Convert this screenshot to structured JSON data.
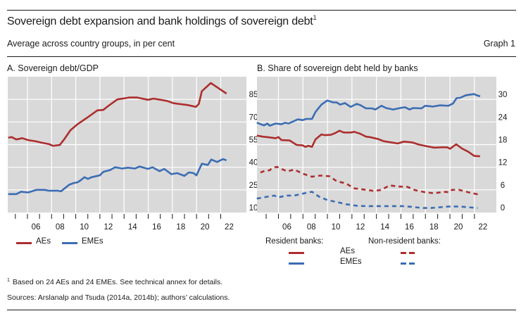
{
  "header": {
    "title": "Sovereign debt expansion and bank holdings of sovereign debt",
    "title_footnote_mark": "1",
    "subtitle": "Average across country groups, in per cent",
    "graph_number": "Graph 1"
  },
  "colors": {
    "AEs": "#AD2E2E",
    "EMEs": "#3B6DB3",
    "plot_background": "#D9D9D9",
    "gridline": "#FFFFFF"
  },
  "chart_data": [
    {
      "id": "A",
      "type": "line",
      "title": "A. Sovereign debt/GDP",
      "xlabel": "",
      "ylabel": "",
      "xlim": [
        2004.37,
        2024.13
      ],
      "ylim": [
        10,
        100
      ],
      "y_axis_side": "right",
      "yticks": [
        10,
        25,
        40,
        55,
        70,
        85
      ],
      "xticks": [
        2006,
        2008,
        2010,
        2012,
        2014,
        2016,
        2018,
        2020,
        2022
      ],
      "xtick_labels": [
        "06",
        "08",
        "10",
        "12",
        "14",
        "16",
        "18",
        "20",
        "22"
      ],
      "minor_xticks": [
        2005,
        2007,
        2009,
        2011,
        2013,
        2015,
        2017,
        2019,
        2021
      ],
      "grid": true,
      "legend": {
        "placement": "bottom-left",
        "entries": [
          "AEs",
          "EMEs"
        ]
      },
      "series": [
        {
          "name": "AEs",
          "style": "solid",
          "color_key": "AEs",
          "x": [
            2004.41,
            2004.7,
            2005.08,
            2005.57,
            2006.06,
            2006.64,
            2007.22,
            2007.81,
            2008.1,
            2008.68,
            2009.07,
            2009.56,
            2010.14,
            2010.92,
            2011.79,
            2012.28,
            2012.66,
            2013.45,
            2014.12,
            2014.41,
            2015.1,
            2015.97,
            2016.45,
            2017.53,
            2018.11,
            2019.28,
            2019.95,
            2020.19,
            2020.44,
            2021.18,
            2021.61,
            2022.48
          ],
          "values": [
            59.6,
            60.0,
            58.4,
            59.3,
            58.0,
            57.3,
            56.2,
            55.3,
            54.2,
            54.7,
            58.8,
            64.5,
            68.5,
            72.7,
            77.7,
            78.0,
            80.4,
            85.0,
            85.8,
            86.2,
            86.2,
            84.7,
            85.5,
            84.0,
            82.4,
            81.2,
            80.0,
            82.0,
            90.4,
            95.8,
            93.5,
            88.8
          ]
        },
        {
          "name": "EMEs",
          "style": "solid",
          "color_key": "EMEs",
          "x": [
            2004.41,
            2005.08,
            2005.48,
            2006.06,
            2006.74,
            2007.42,
            2007.81,
            2008.49,
            2008.78,
            2009.46,
            2009.85,
            2010.14,
            2010.43,
            2010.72,
            2011.01,
            2011.31,
            2011.99,
            2012.28,
            2012.86,
            2013.25,
            2013.83,
            2014.32,
            2014.9,
            2015.29,
            2015.97,
            2016.36,
            2016.94,
            2017.33,
            2017.91,
            2018.4,
            2018.99,
            2019.37,
            2019.76,
            2019.99,
            2020.44,
            2020.93,
            2021.22,
            2021.7,
            2022.19,
            2022.48
          ],
          "values": [
            22.2,
            22.2,
            23.8,
            23.3,
            25.0,
            25.0,
            24.4,
            24.5,
            24.1,
            28.4,
            29.6,
            30.0,
            31.5,
            33.4,
            32.3,
            33.4,
            34.6,
            36.9,
            38.2,
            40.0,
            39.2,
            39.7,
            39.2,
            40.5,
            38.9,
            40.0,
            37.4,
            38.9,
            35.4,
            36.1,
            34.3,
            36.6,
            36.1,
            34.6,
            42.3,
            41.5,
            45.1,
            43.5,
            45.4,
            44.6
          ]
        }
      ]
    },
    {
      "id": "B",
      "type": "line",
      "title": "B. Share of sovereign debt held by banks",
      "xlabel": "",
      "ylabel": "",
      "xlim": [
        2004.25,
        2023.79
      ],
      "ylim": [
        0,
        36
      ],
      "y_axis_side": "right",
      "yticks": [
        0,
        6,
        12,
        18,
        24,
        30
      ],
      "xticks": [
        2006,
        2008,
        2010,
        2012,
        2014,
        2016,
        2018,
        2020,
        2022
      ],
      "xtick_labels": [
        "06",
        "08",
        "10",
        "12",
        "14",
        "16",
        "18",
        "20",
        "22"
      ],
      "minor_xticks": [
        2005,
        2007,
        2009,
        2011,
        2013,
        2015,
        2017,
        2019,
        2021
      ],
      "grid": true,
      "legend": {
        "placement": "bottom",
        "group_labels": [
          "Resident banks:",
          "Non-resident banks:"
        ],
        "row_labels": [
          "AEs",
          "EMEs"
        ]
      },
      "series": [
        {
          "name": "Resident banks: EMEs",
          "style": "solid",
          "color_key": "EMEs",
          "x": [
            2004.24,
            2004.82,
            2005.1,
            2005.29,
            2005.77,
            2006.25,
            2006.54,
            2006.83,
            2007.59,
            2007.98,
            2008.26,
            2008.74,
            2009.03,
            2009.51,
            2009.99,
            2010.47,
            2010.75,
            2011.04,
            2011.43,
            2011.9,
            2012.38,
            2012.67,
            2013.15,
            2013.63,
            2013.91,
            2014.41,
            2014.79,
            2015.37,
            2015.94,
            2016.33,
            2016.71,
            2017.0,
            2017.67,
            2017.99,
            2018.63,
            2019.2,
            2019.87,
            2020.25,
            2020.54,
            2020.83,
            2021.31,
            2021.98,
            2022.17,
            2022.46
          ],
          "values": [
            23.8,
            23.1,
            23.6,
            23.0,
            23.6,
            23.4,
            23.8,
            23.6,
            24.7,
            24.5,
            24.8,
            24.8,
            26.7,
            28.6,
            29.7,
            29.2,
            29.2,
            28.6,
            29.0,
            28.0,
            28.8,
            28.5,
            27.6,
            27.6,
            27.3,
            28.3,
            27.7,
            27.3,
            27.7,
            27.9,
            27.3,
            27.7,
            27.6,
            28.3,
            28.1,
            28.4,
            28.3,
            28.9,
            30.3,
            30.4,
            31.1,
            31.4,
            31.1,
            30.8
          ]
        },
        {
          "name": "Resident banks: AEs",
          "style": "solid",
          "color_key": "AEs",
          "x": [
            2004.24,
            2004.72,
            2005.29,
            2005.77,
            2006.0,
            2006.25,
            2006.92,
            2007.49,
            2007.98,
            2008.21,
            2008.45,
            2008.74,
            2009.03,
            2009.51,
            2009.79,
            2010.28,
            2010.66,
            2010.98,
            2011.33,
            2011.9,
            2012.19,
            2012.67,
            2013.15,
            2013.45,
            2014.13,
            2014.6,
            2015.18,
            2015.75,
            2016.23,
            2016.9,
            2017.48,
            2018.05,
            2018.72,
            2019.3,
            2019.78,
            2020.01,
            2020.51,
            2021.02,
            2021.5,
            2021.98,
            2022.46
          ],
          "values": [
            20.4,
            20.1,
            19.9,
            19.7,
            20.0,
            19.2,
            19.1,
            17.9,
            17.8,
            17.4,
            17.7,
            17.4,
            19.4,
            20.7,
            20.5,
            20.6,
            21.1,
            21.7,
            21.2,
            21.2,
            21.4,
            20.9,
            20.1,
            20.0,
            19.5,
            18.9,
            18.6,
            18.3,
            18.8,
            18.6,
            18.0,
            17.6,
            17.2,
            17.3,
            17.3,
            16.9,
            18.1,
            16.9,
            16.1,
            15.0,
            14.9
          ]
        },
        {
          "name": "Non-resident banks: AEs",
          "style": "dashed",
          "color_key": "AEs",
          "x": [
            2004.53,
            2004.91,
            2005.29,
            2005.48,
            2005.87,
            2006.16,
            2006.73,
            2007.3,
            2007.98,
            2008.74,
            2009.41,
            2010.18,
            2010.75,
            2011.52,
            2012.19,
            2012.95,
            2013.82,
            2014.41,
            2015.08,
            2015.75,
            2016.52,
            2017.19,
            2017.95,
            2018.72,
            2019.49,
            2019.97,
            2020.16,
            2020.74,
            2021.69,
            2022.46
          ],
          "values": [
            10.6,
            11.1,
            11.2,
            11.8,
            12.1,
            11.7,
            10.9,
            11.4,
            10.3,
            9.5,
            9.8,
            9.6,
            8.3,
            7.7,
            6.4,
            6.1,
            5.7,
            6.0,
            7.2,
            6.9,
            6.8,
            5.9,
            5.4,
            5.1,
            5.5,
            5.4,
            6.0,
            6.0,
            5.2,
            4.7
          ]
        },
        {
          "name": "Non-resident banks: EMEs",
          "style": "dashed",
          "color_key": "EMEs",
          "x": [
            2004.24,
            2005.1,
            2005.68,
            2005.97,
            2006.63,
            2007.3,
            2007.98,
            2008.74,
            2009.32,
            2009.99,
            2010.75,
            2011.52,
            2012.38,
            2013.15,
            2013.82,
            2014.6,
            2015.37,
            2016.14,
            2016.9,
            2017.76,
            2018.44,
            2019.2,
            2019.97,
            2020.74,
            2021.5,
            2022.26
          ],
          "values": [
            3.7,
            4.2,
            4.5,
            4.0,
            4.5,
            4.5,
            5.0,
            5.5,
            4.2,
            3.3,
            2.8,
            2.2,
            1.8,
            1.7,
            1.7,
            1.7,
            1.7,
            1.7,
            1.5,
            1.2,
            1.2,
            1.4,
            1.6,
            1.6,
            1.4,
            1.2
          ]
        }
      ]
    }
  ],
  "legend_a": {
    "items": [
      {
        "label": "AEs",
        "color_key": "AEs"
      },
      {
        "label": "EMEs",
        "color_key": "EMEs"
      }
    ]
  },
  "legend_b": {
    "resident_label": "Resident banks:",
    "nonresident_label": "Non-resident banks:",
    "row_aes": "AEs",
    "row_emes": "EMEs"
  },
  "footnotes": {
    "note_mark": "1",
    "note_text": "Based on 24 AEs and 24 EMEs. See technical annex for details.",
    "sources": "Sources: Arslanalp and Tsuda (2014a, 2014b); authors’ calculations."
  }
}
